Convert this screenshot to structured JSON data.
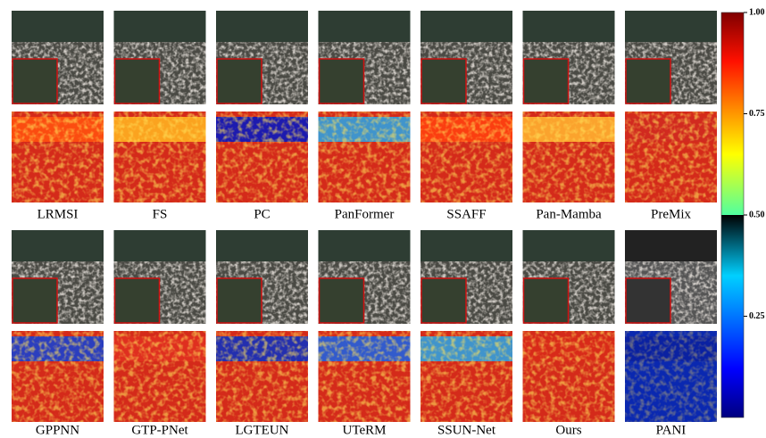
{
  "rows": [
    {
      "labels": [
        "LRMSI",
        "FS",
        "PC",
        "PanFormer",
        "SSAFF",
        "Pan-Mamba",
        "PreMix"
      ]
    },
    {
      "labels": [
        "GPPNN",
        "GTP-PNet",
        "LGTEUN",
        "UTeRM",
        "SSUN-Net",
        "Ours",
        "PANI"
      ]
    }
  ],
  "colorbar": {
    "lim": [
      0,
      1
    ],
    "ticks": [
      {
        "value": 1,
        "label": "1.00"
      },
      {
        "value": 0.75,
        "label": "0.75"
      },
      {
        "value": 0.5,
        "label": "0.50"
      },
      {
        "value": 0.25,
        "label": "0.25"
      }
    ]
  }
}
